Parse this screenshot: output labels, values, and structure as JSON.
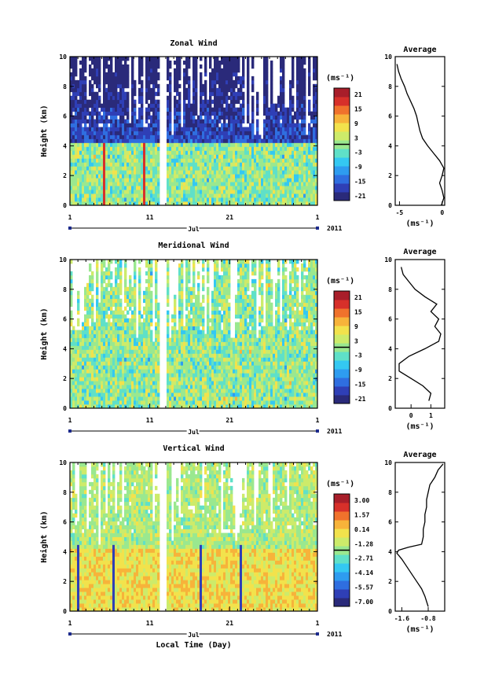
{
  "figure": {
    "xlabel": "Local Time (Day)"
  },
  "colors": {
    "scale": [
      "#2a2a7a",
      "#2f3fb6",
      "#2f6ee0",
      "#2e9cf0",
      "#34c8f2",
      "#5fe0c8",
      "#9ae88f",
      "#cdeb6a",
      "#f2e24c",
      "#f7b33a",
      "#f0722c",
      "#d7302a",
      "#a81e2a"
    ]
  },
  "panels": [
    {
      "title": "Zonal Wind",
      "colorbar_unit": "(ms⁻¹)",
      "colorbar_ticks": [
        "21",
        "15",
        "9",
        "3",
        "-3",
        "-9",
        "-15",
        "-21"
      ],
      "avg_title": "Average",
      "avg_unit": "(ms⁻¹)",
      "avg_xticks": [
        "-5",
        "0"
      ],
      "x_tick_labels": [
        "1",
        "11",
        "21",
        "1"
      ],
      "month": "Jul",
      "year": "2011",
      "ylabel": "Height (km)",
      "y_tick_labels": [
        "0",
        "2",
        "4",
        "6",
        "8",
        "10"
      ]
    },
    {
      "title": "Meridional Wind",
      "colorbar_unit": "(ms⁻¹)",
      "colorbar_ticks": [
        "21",
        "15",
        "9",
        "3",
        "-3",
        "-9",
        "-15",
        "-21"
      ],
      "avg_title": "Average",
      "avg_unit": "(ms⁻¹)",
      "avg_xticks": [
        "0",
        "1"
      ],
      "x_tick_labels": [
        "1",
        "11",
        "21",
        "1"
      ],
      "month": "Jul",
      "year": "2011",
      "ylabel": "Height (km)",
      "y_tick_labels": [
        "0",
        "2",
        "4",
        "6",
        "8",
        "10"
      ]
    },
    {
      "title": "Vertical Wind",
      "colorbar_unit": "(ms⁻¹)",
      "colorbar_ticks": [
        "3.00",
        "1.57",
        "0.14",
        "-1.28",
        "-2.71",
        "-4.14",
        "-5.57",
        "-7.00"
      ],
      "avg_title": "Average",
      "avg_unit": "(ms⁻¹)",
      "avg_xticks": [
        "-1.6",
        "-0.8"
      ],
      "x_tick_labels": [
        "1",
        "11",
        "21",
        "1"
      ],
      "month": "Jul",
      "year": "2011",
      "ylabel": "Height (km)",
      "y_tick_labels": [
        "0",
        "2",
        "4",
        "6",
        "8",
        "10"
      ]
    }
  ],
  "chart_data": [
    {
      "type": "heatmap",
      "title": "Zonal Wind",
      "xlabel": "",
      "ylabel": "Height (km)",
      "x_range_days": [
        1,
        32
      ],
      "ylim": [
        0,
        10
      ],
      "x_ticks": [
        1,
        11,
        21,
        32
      ],
      "colorbar_range": [
        -24,
        24
      ],
      "profile": {
        "title": "Average",
        "xlim": [
          -5.5,
          0.3
        ],
        "height": [
          0.0,
          0.5,
          1.0,
          1.5,
          2.0,
          2.5,
          3.0,
          3.5,
          4.0,
          4.5,
          5.0,
          5.5,
          6.0,
          6.5,
          7.0,
          7.5,
          8.0,
          8.5,
          9.0,
          9.5
        ],
        "value": [
          -0.1,
          0.2,
          0.0,
          -0.3,
          0.0,
          0.2,
          -0.3,
          -1.0,
          -1.7,
          -2.3,
          -2.6,
          -2.8,
          -3.0,
          -3.3,
          -3.7,
          -4.1,
          -4.4,
          -4.8,
          -5.1,
          -5.3
        ]
      }
    },
    {
      "type": "heatmap",
      "title": "Meridional Wind",
      "xlabel": "",
      "ylabel": "Height (km)",
      "x_range_days": [
        1,
        32
      ],
      "ylim": [
        0,
        10
      ],
      "x_ticks": [
        1,
        11,
        21,
        32
      ],
      "colorbar_range": [
        -24,
        24
      ],
      "profile": {
        "title": "Average",
        "xlim": [
          -0.8,
          1.7
        ],
        "height": [
          0.5,
          1.0,
          1.5,
          2.0,
          2.5,
          3.0,
          3.5,
          4.0,
          4.5,
          5.0,
          5.5,
          6.0,
          6.5,
          7.0,
          7.5,
          8.0,
          8.5,
          9.0,
          9.5
        ],
        "value": [
          0.9,
          1.0,
          0.6,
          0.0,
          -0.6,
          -0.6,
          -0.1,
          0.7,
          1.4,
          1.5,
          1.2,
          1.4,
          1.0,
          1.3,
          0.7,
          0.2,
          -0.1,
          -0.4,
          -0.5
        ]
      }
    },
    {
      "type": "heatmap",
      "title": "Vertical Wind",
      "xlabel": "Local Time (Day)",
      "ylabel": "Height (km)",
      "x_range_days": [
        1,
        32
      ],
      "ylim": [
        0,
        10
      ],
      "x_ticks": [
        1,
        11,
        21,
        32
      ],
      "colorbar_range": [
        -7.0,
        3.0
      ],
      "profile": {
        "title": "Average",
        "xlim": [
          -1.8,
          -0.3
        ],
        "height": [
          0.3,
          1.0,
          1.5,
          2.0,
          2.5,
          3.0,
          3.5,
          3.9,
          4.1,
          4.3,
          4.5,
          5.0,
          5.5,
          6.0,
          6.5,
          7.0,
          7.5,
          8.0,
          8.5,
          9.0,
          9.5,
          9.9
        ],
        "value": [
          -0.8,
          -0.9,
          -1.0,
          -1.15,
          -1.3,
          -1.45,
          -1.6,
          -1.75,
          -1.7,
          -1.4,
          -1.0,
          -0.95,
          -0.95,
          -0.9,
          -0.9,
          -0.85,
          -0.85,
          -0.8,
          -0.75,
          -0.6,
          -0.5,
          -0.35
        ]
      }
    }
  ]
}
